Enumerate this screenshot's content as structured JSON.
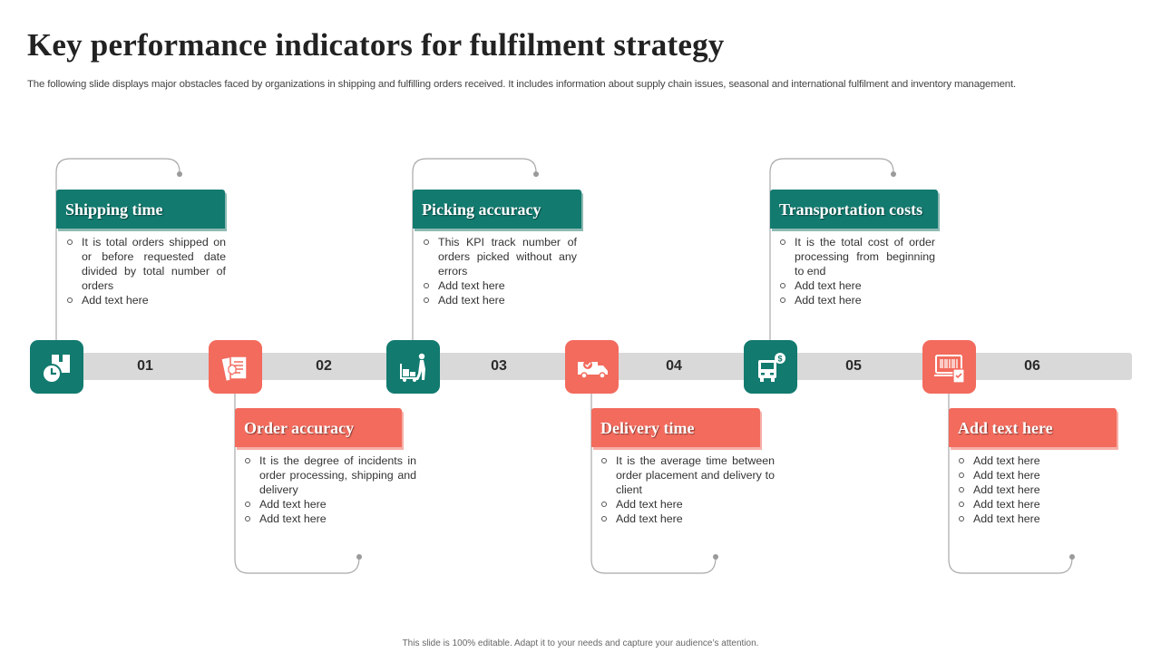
{
  "title": "Key performance indicators for fulfilment strategy",
  "subtitle": "The following slide displays major obstacles faced by organizations in shipping and fulfilling orders received. It includes information about supply chain issues, seasonal and international fulfilment and inventory management.",
  "footer": "This slide is 100% editable. Adapt it to your needs and capture your audience’s attention.",
  "colors": {
    "teal": "#127a6f",
    "coral": "#f26b5d",
    "bar": "#d9d9d9"
  },
  "steps": [
    {
      "number": "01",
      "label": "Shipping time",
      "icon": "box-clock-icon",
      "color": "teal",
      "bullets": [
        "It is total orders shipped on or before requested date divided by total number of orders",
        "Add text here"
      ]
    },
    {
      "number": "02",
      "label": "Order accuracy",
      "icon": "order-documents-icon",
      "color": "coral",
      "bullets": [
        "It is the degree of incidents in order processing, shipping and delivery",
        "Add text here",
        "Add text here"
      ]
    },
    {
      "number": "03",
      "label": "Picking accuracy",
      "icon": "worker-cart-icon",
      "color": "teal",
      "bullets": [
        "This KPI track number of orders picked without any errors",
        "Add text here",
        "Add text here"
      ]
    },
    {
      "number": "04",
      "label": "Delivery time",
      "icon": "delivery-truck-icon",
      "color": "coral",
      "bullets": [
        "It is the average time between order placement and delivery to client",
        "Add text here",
        "Add text here"
      ]
    },
    {
      "number": "05",
      "label": "Transportation costs",
      "icon": "truck-dollar-icon",
      "color": "teal",
      "bullets": [
        "It is the total cost of order processing from beginning to end",
        "Add text here",
        "Add text here"
      ]
    },
    {
      "number": "06",
      "label": "Add text here",
      "icon": "barcode-laptop-icon",
      "color": "coral",
      "bullets": [
        "Add text here",
        "Add text here",
        "Add text here",
        "Add text here",
        "Add text here"
      ]
    }
  ]
}
